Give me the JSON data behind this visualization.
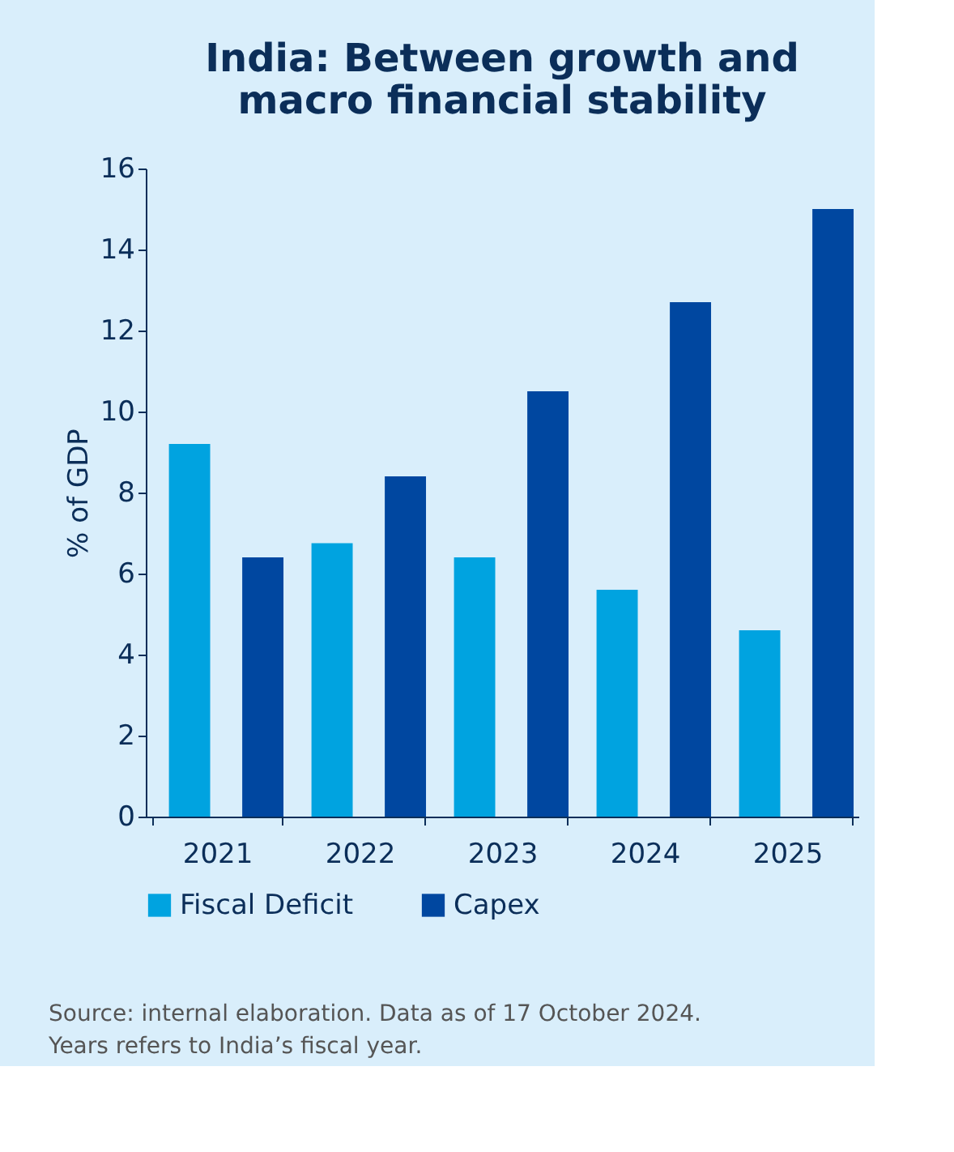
{
  "chart_data": {
    "type": "bar",
    "title": "India: Between growth and macro financial stability",
    "ylabel": "% of GDP",
    "categories": [
      "2021",
      "2022",
      "2023",
      "2024",
      "2025"
    ],
    "series": [
      {
        "name": "Fiscal Deficit",
        "color": "#00a3e0",
        "values": [
          9.2,
          6.75,
          6.4,
          5.6,
          4.6
        ]
      },
      {
        "name": "Capex",
        "color": "#0047a0",
        "values": [
          6.4,
          8.4,
          10.5,
          12.7,
          15.0
        ]
      }
    ],
    "ylim": [
      0,
      16
    ],
    "yticks": [
      0,
      2,
      4,
      6,
      8,
      10,
      12,
      14,
      16
    ],
    "grid": false,
    "legend": "bottom",
    "annotations": [
      "Source: internal elaboration. Data as of 17 October 2024. Years refers to India’s fiscal year."
    ]
  }
}
